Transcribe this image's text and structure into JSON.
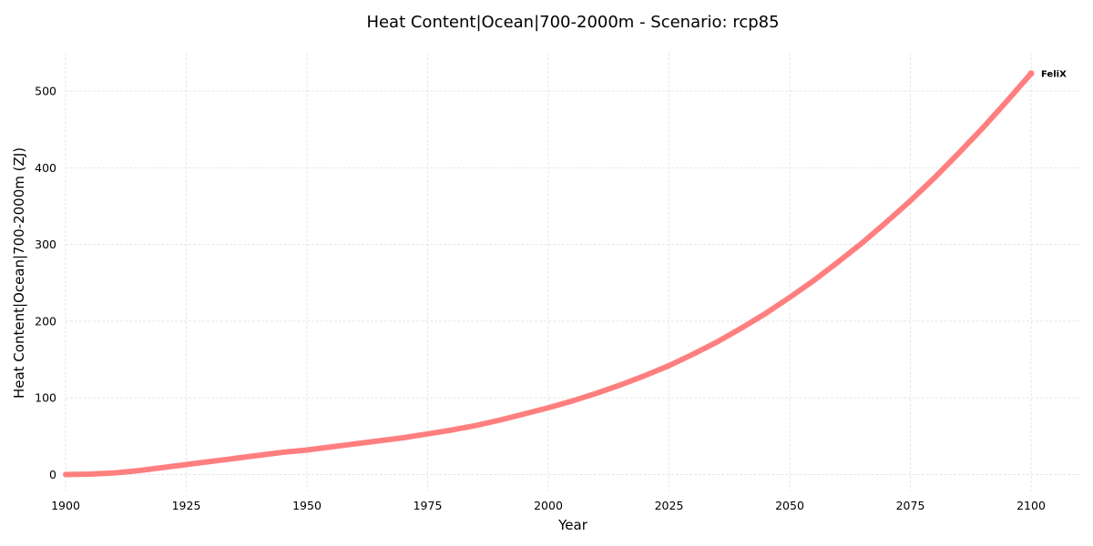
{
  "chart_data": {
    "type": "line",
    "title": "Heat Content|Ocean|700-2000m - Scenario: rcp85",
    "xlabel": "Year",
    "ylabel": "Heat Content|Ocean|700-2000m (ZJ)",
    "xlim": [
      1900,
      2110
    ],
    "ylim": [
      -22,
      550
    ],
    "xticks": [
      1900,
      1925,
      1950,
      1975,
      2000,
      2025,
      2050,
      2075,
      2100
    ],
    "yticks": [
      0,
      100,
      200,
      300,
      400,
      500
    ],
    "grid": true,
    "series": [
      {
        "name": "FeliX",
        "color": "#ff7f7f",
        "x": [
          1900,
          1905,
          1910,
          1915,
          1920,
          1925,
          1930,
          1935,
          1940,
          1945,
          1950,
          1955,
          1960,
          1965,
          1970,
          1975,
          1980,
          1985,
          1990,
          1995,
          2000,
          2005,
          2010,
          2015,
          2020,
          2025,
          2030,
          2035,
          2040,
          2045,
          2050,
          2055,
          2060,
          2065,
          2070,
          2075,
          2080,
          2085,
          2090,
          2095,
          2100
        ],
        "y": [
          0,
          0.5,
          2,
          5,
          9,
          13,
          17,
          21,
          25,
          29,
          32,
          36,
          40,
          44,
          48,
          53,
          58,
          64,
          71,
          79,
          87,
          96,
          106,
          117,
          129,
          142,
          157,
          173,
          191,
          210,
          231,
          253,
          277,
          302,
          329,
          357,
          387,
          419,
          452,
          487,
          523
        ]
      }
    ]
  }
}
